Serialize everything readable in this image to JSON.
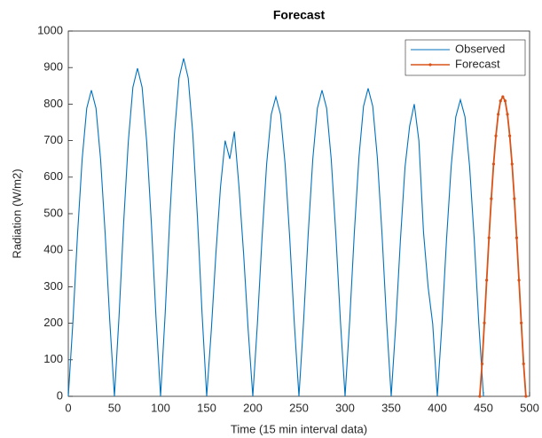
{
  "chart_data": {
    "type": "line",
    "title": "Forecast",
    "x_label": "Time (15 min interval data)",
    "y_label": "Radiation (W/m2)",
    "xlim": [
      0,
      500
    ],
    "xticks": [
      0,
      50,
      100,
      150,
      200,
      250,
      300,
      350,
      400,
      450,
      500
    ],
    "ylim": [
      0,
      1000
    ],
    "yticks": [
      0,
      100,
      200,
      300,
      400,
      500,
      600,
      700,
      800,
      900,
      1000
    ],
    "legend": "top-right",
    "series": [
      {
        "name": "Observed",
        "color": "#0072bd",
        "marker": false,
        "x": [
          0,
          5,
          10,
          15,
          20,
          25,
          30,
          35,
          40,
          45,
          50,
          55,
          60,
          65,
          70,
          75,
          80,
          85,
          90,
          95,
          100,
          105,
          110,
          115,
          120,
          125,
          130,
          135,
          140,
          145,
          150,
          155,
          160,
          165,
          170,
          175,
          180,
          185,
          190,
          195,
          200,
          205,
          210,
          215,
          220,
          225,
          230,
          235,
          240,
          245,
          250,
          255,
          260,
          265,
          270,
          275,
          280,
          285,
          290,
          295,
          300,
          305,
          310,
          315,
          320,
          325,
          330,
          335,
          340,
          345,
          350,
          355,
          360,
          365,
          370,
          375,
          380,
          385,
          390,
          395,
          400,
          405,
          410,
          415,
          420,
          425,
          430,
          435,
          440,
          445,
          450
        ],
        "values": [
          0,
          204,
          443,
          649,
          789,
          838,
          789,
          649,
          443,
          204,
          0,
          219,
          475,
          696,
          846,
          898,
          846,
          696,
          475,
          219,
          0,
          226,
          489,
          717,
          871,
          925,
          871,
          717,
          489,
          226,
          0,
          181,
          391,
          574,
          700,
          650,
          725,
          574,
          391,
          181,
          0,
          200,
          434,
          636,
          772,
          820,
          772,
          636,
          434,
          200,
          0,
          204,
          443,
          649,
          789,
          838,
          789,
          649,
          443,
          204,
          0,
          206,
          446,
          653,
          794,
          843,
          794,
          653,
          446,
          206,
          0,
          198,
          428,
          628,
          740,
          800,
          700,
          450,
          300,
          198,
          0,
          198,
          430,
          629,
          765,
          812,
          765,
          629,
          430,
          198,
          0
        ]
      },
      {
        "name": "Forecast",
        "color": "#d95319",
        "marker": true,
        "x": [
          446,
          448.5,
          451,
          453.5,
          456,
          458.5,
          461,
          463.5,
          466,
          468.5,
          471,
          473.5,
          476,
          478.5,
          481,
          483.5,
          486,
          488.5,
          491,
          493.5,
          496
        ],
        "values": [
          0,
          89,
          201,
          318,
          434,
          541,
          636,
          713,
          772,
          809,
          820,
          809,
          772,
          713,
          636,
          541,
          434,
          318,
          201,
          89,
          0
        ]
      }
    ]
  }
}
